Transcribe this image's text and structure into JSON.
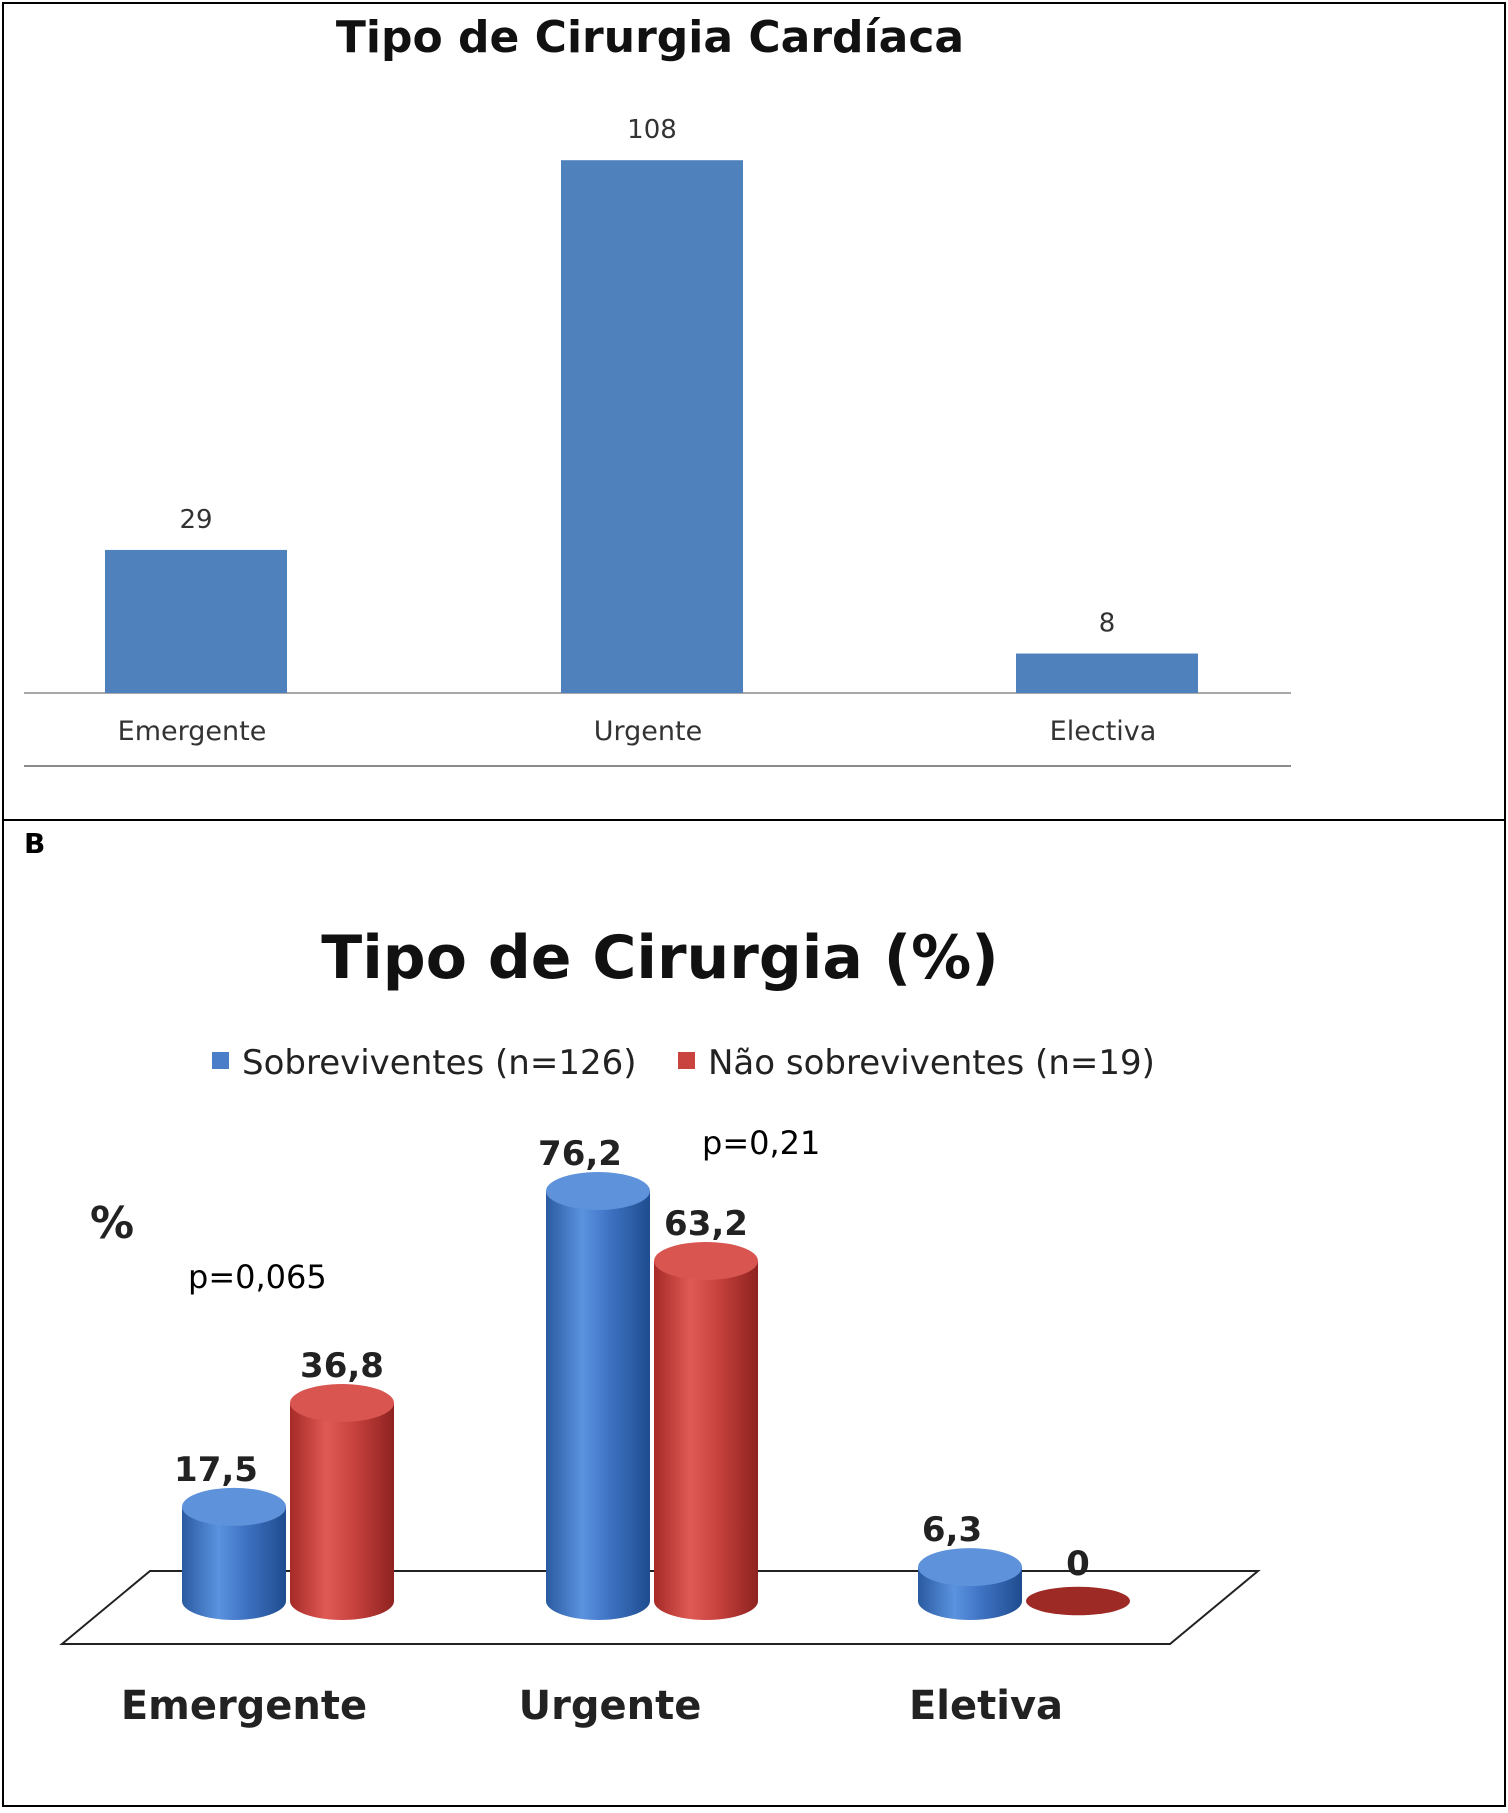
{
  "panel_b": {
    "label": "B"
  },
  "chart_data": [
    {
      "type": "bar",
      "title": "Tipo de Cirurgia Cardíaca",
      "categories": [
        "Emergente",
        "Urgente",
        "Electiva"
      ],
      "values": [
        29,
        108,
        8
      ],
      "data_labels": [
        "29",
        "108",
        "8"
      ],
      "ylim": [
        0,
        120
      ],
      "grid": false,
      "colors": {
        "bar": "#4f81bd"
      }
    },
    {
      "type": "bar",
      "title": "Tipo de Cirurgia (%)",
      "ylabel": "%",
      "categories": [
        "Emergente",
        "Urgente",
        "Eletiva"
      ],
      "series": [
        {
          "name": "Sobreviventes (n=126)",
          "values": [
            17.5,
            76.2,
            6.3
          ],
          "labels": [
            "17,5",
            "76,2",
            "6,3"
          ],
          "color": "#4a7ec9"
        },
        {
          "name": "Não sobreviventes (n=19)",
          "values": [
            36.8,
            63.2,
            0
          ],
          "labels": [
            "36,8",
            "63,2",
            "0"
          ],
          "color": "#c9433f"
        }
      ],
      "annotations": [
        "p=0,065",
        "p=0,21"
      ],
      "legend": "top",
      "ylim": [
        0,
        90
      ],
      "grid": false,
      "style": "3d-cylinder"
    }
  ]
}
